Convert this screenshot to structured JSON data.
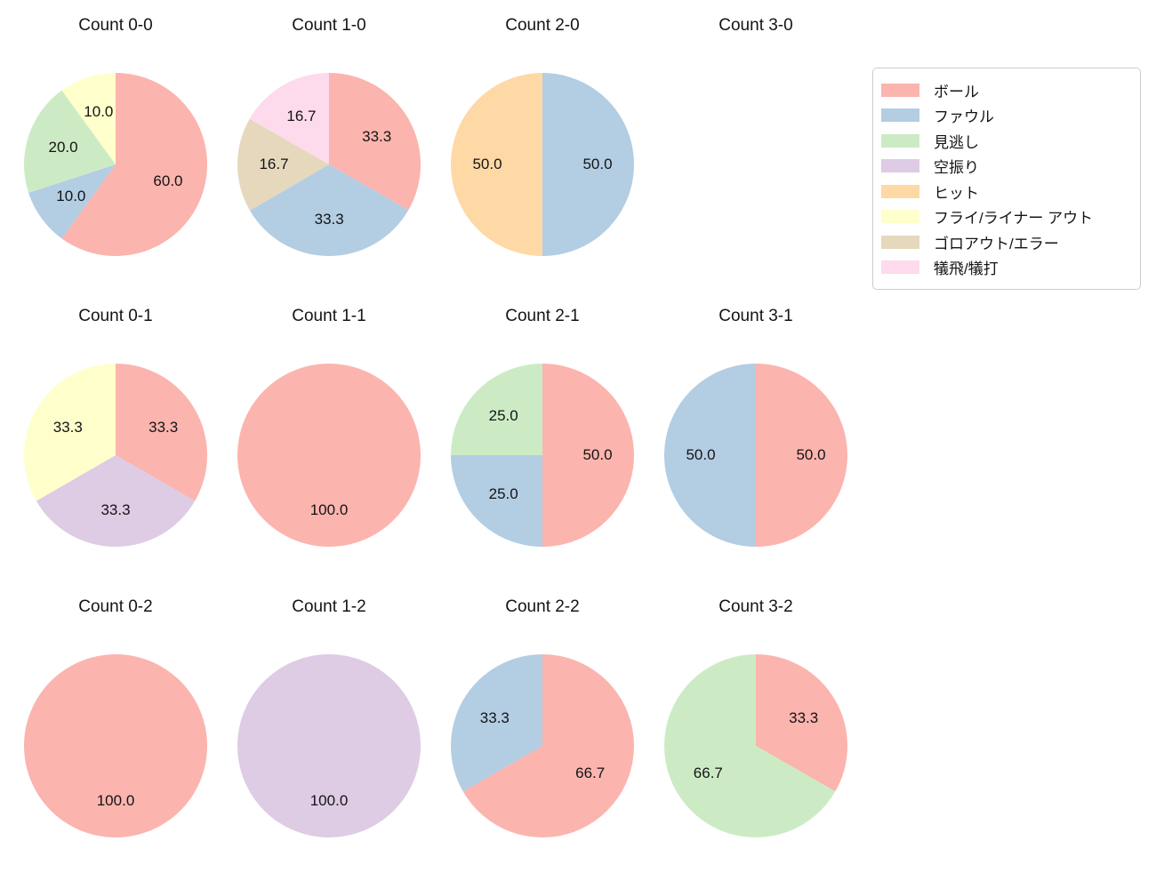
{
  "figure": {
    "background": "#ffffff",
    "text_color": "#141414"
  },
  "palette": {
    "ball": "#fbb4ae",
    "foul": "#b3cde3",
    "called_strike": "#ccebc5",
    "swinging_strike": "#decbe4",
    "hit": "#fed9a6",
    "fly_liner_out": "#ffffcc",
    "groundout_error": "#e5d8bd",
    "sacrifice": "#fddaec"
  },
  "legend": {
    "items": [
      {
        "label": "ボール",
        "color_key": "ball"
      },
      {
        "label": "ファウル",
        "color_key": "foul"
      },
      {
        "label": "見逃し",
        "color_key": "called_strike"
      },
      {
        "label": "空振り",
        "color_key": "swinging_strike"
      },
      {
        "label": "ヒット",
        "color_key": "hit"
      },
      {
        "label": "フライ/ライナー アウト",
        "color_key": "fly_liner_out"
      },
      {
        "label": "ゴロアウト/エラー",
        "color_key": "groundout_error"
      },
      {
        "label": "犠飛/犠打",
        "color_key": "sacrifice"
      }
    ]
  },
  "pie_config": {
    "start_angle": 90,
    "clockwise": true,
    "pct_distance": 0.6,
    "autopct_format": "one-decimal"
  },
  "chart_data": [
    {
      "type": "pie",
      "title": "Count 0-0",
      "slices": [
        {
          "label": "ボール",
          "color_key": "ball",
          "value": 60.0,
          "pct_label": "60.0"
        },
        {
          "label": "ファウル",
          "color_key": "foul",
          "value": 10.0,
          "pct_label": "10.0"
        },
        {
          "label": "見逃し",
          "color_key": "called_strike",
          "value": 20.0,
          "pct_label": "20.0"
        },
        {
          "label": "フライ/ライナー アウト",
          "color_key": "fly_liner_out",
          "value": 10.0,
          "pct_label": "10.0"
        }
      ]
    },
    {
      "type": "pie",
      "title": "Count 1-0",
      "slices": [
        {
          "label": "ボール",
          "color_key": "ball",
          "value": 33.3,
          "pct_label": "33.3"
        },
        {
          "label": "ファウル",
          "color_key": "foul",
          "value": 33.3,
          "pct_label": "33.3"
        },
        {
          "label": "ゴロアウト/エラー",
          "color_key": "groundout_error",
          "value": 16.7,
          "pct_label": "16.7"
        },
        {
          "label": "犠飛/犠打",
          "color_key": "sacrifice",
          "value": 16.7,
          "pct_label": "16.7"
        }
      ]
    },
    {
      "type": "pie",
      "title": "Count 2-0",
      "slices": [
        {
          "label": "ファウル",
          "color_key": "foul",
          "value": 50.0,
          "pct_label": "50.0"
        },
        {
          "label": "ヒット",
          "color_key": "hit",
          "value": 50.0,
          "pct_label": "50.0"
        }
      ]
    },
    {
      "type": "pie",
      "title": "Count 3-0",
      "slices": []
    },
    {
      "type": "pie",
      "title": "Count 0-1",
      "slices": [
        {
          "label": "ボール",
          "color_key": "ball",
          "value": 33.3,
          "pct_label": "33.3"
        },
        {
          "label": "空振り",
          "color_key": "swinging_strike",
          "value": 33.3,
          "pct_label": "33.3"
        },
        {
          "label": "フライ/ライナー アウト",
          "color_key": "fly_liner_out",
          "value": 33.3,
          "pct_label": "33.3"
        }
      ]
    },
    {
      "type": "pie",
      "title": "Count 1-1",
      "slices": [
        {
          "label": "ボール",
          "color_key": "ball",
          "value": 100.0,
          "pct_label": "100.0"
        }
      ]
    },
    {
      "type": "pie",
      "title": "Count 2-1",
      "slices": [
        {
          "label": "ボール",
          "color_key": "ball",
          "value": 50.0,
          "pct_label": "50.0"
        },
        {
          "label": "ファウル",
          "color_key": "foul",
          "value": 25.0,
          "pct_label": "25.0"
        },
        {
          "label": "見逃し",
          "color_key": "called_strike",
          "value": 25.0,
          "pct_label": "25.0"
        }
      ]
    },
    {
      "type": "pie",
      "title": "Count 3-1",
      "slices": [
        {
          "label": "ボール",
          "color_key": "ball",
          "value": 50.0,
          "pct_label": "50.0"
        },
        {
          "label": "ファウル",
          "color_key": "foul",
          "value": 50.0,
          "pct_label": "50.0"
        }
      ]
    },
    {
      "type": "pie",
      "title": "Count 0-2",
      "slices": [
        {
          "label": "ボール",
          "color_key": "ball",
          "value": 100.0,
          "pct_label": "100.0"
        }
      ]
    },
    {
      "type": "pie",
      "title": "Count 1-2",
      "slices": [
        {
          "label": "空振り",
          "color_key": "swinging_strike",
          "value": 100.0,
          "pct_label": "100.0"
        }
      ]
    },
    {
      "type": "pie",
      "title": "Count 2-2",
      "slices": [
        {
          "label": "ボール",
          "color_key": "ball",
          "value": 66.7,
          "pct_label": "66.7"
        },
        {
          "label": "ファウル",
          "color_key": "foul",
          "value": 33.3,
          "pct_label": "33.3"
        }
      ]
    },
    {
      "type": "pie",
      "title": "Count 3-2",
      "slices": [
        {
          "label": "ボール",
          "color_key": "ball",
          "value": 33.3,
          "pct_label": "33.3"
        },
        {
          "label": "見逃し",
          "color_key": "called_strike",
          "value": 66.7,
          "pct_label": "66.7"
        }
      ]
    }
  ]
}
